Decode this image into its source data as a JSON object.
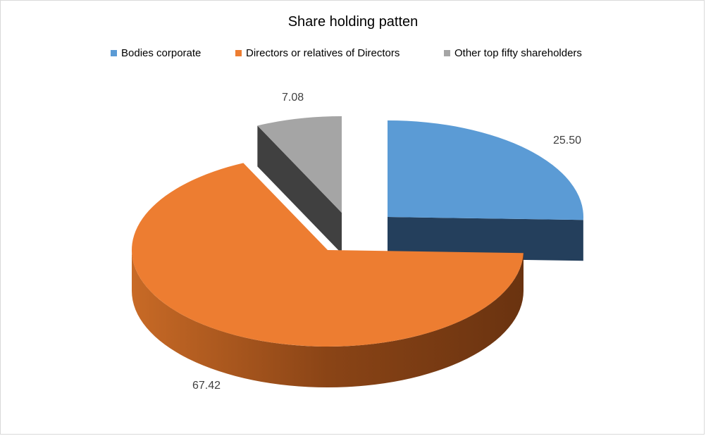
{
  "chart_data": {
    "type": "pie",
    "title": "Share holding patten",
    "legend_position": "top",
    "categories": [
      "Bodies corporate",
      "Directors or relatives of Directors",
      "Other top fifty shareholders"
    ],
    "values": [
      25.5,
      67.42,
      7.08
    ],
    "value_labels": [
      "25.50",
      "67.42",
      "7.08"
    ],
    "colors": [
      "#5b9bd5",
      "#ed7d31",
      "#a5a5a5"
    ],
    "style": "3d-exploded"
  }
}
